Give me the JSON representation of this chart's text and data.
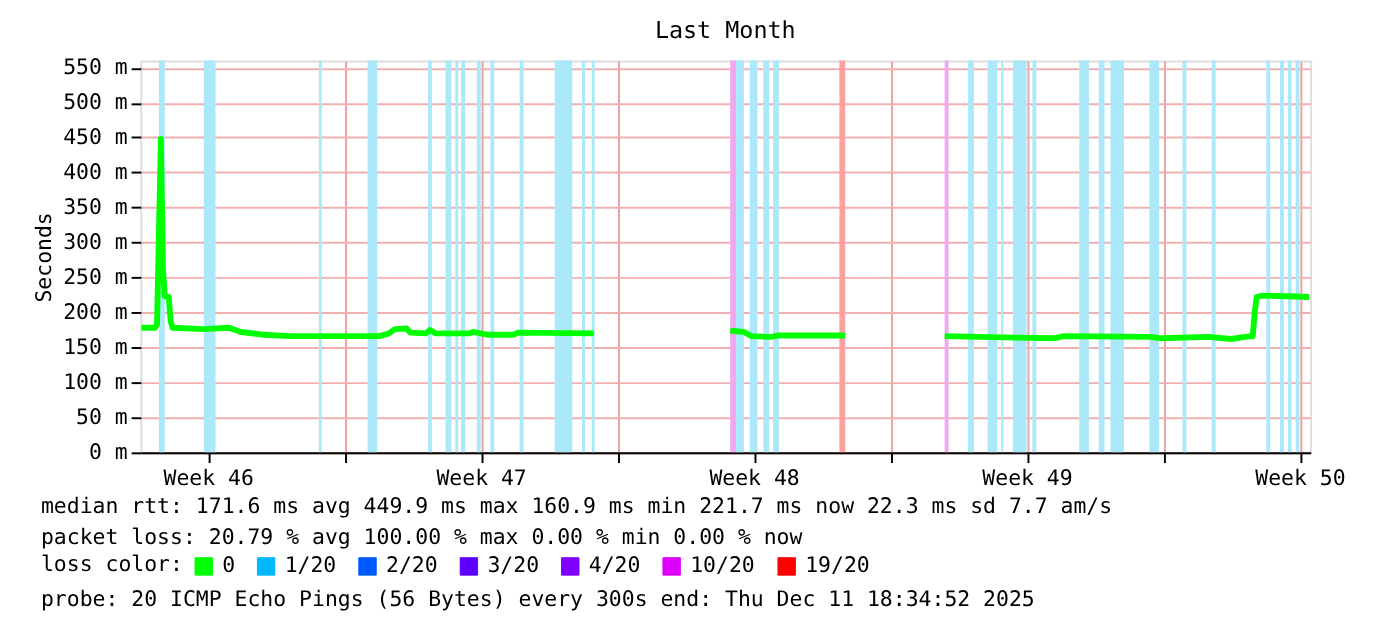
{
  "chart_data": {
    "type": "line",
    "title": "Last Month",
    "ylabel": "Seconds",
    "xlim": [
      "2025-11-11T18:34",
      "2025-12-11T18:34"
    ],
    "xticks": [
      {
        "value": "2025-11-13T12:00",
        "label": "Week 46"
      },
      {
        "value": "2025-11-20T12:00",
        "label": "Week 47"
      },
      {
        "value": "2025-11-27T12:00",
        "label": "Week 48"
      },
      {
        "value": "2025-12-04T12:00",
        "label": "Week 49"
      },
      {
        "value": "2025-12-11T12:00",
        "label": "Week 50"
      },
      {
        "value": "2025-11-17T00:00",
        "label": null
      },
      {
        "value": "2025-11-24T00:00",
        "label": null
      },
      {
        "value": "2025-12-01T00:00",
        "label": null
      },
      {
        "value": "2025-12-08T00:00",
        "label": null
      }
    ],
    "ylim": [
      0,
      560
    ],
    "yticks": [
      {
        "value": 0,
        "label": "0 m"
      },
      {
        "value": 50,
        "label": "50 m"
      },
      {
        "value": 100,
        "label": "100 m"
      },
      {
        "value": 150,
        "label": "150 m"
      },
      {
        "value": 200,
        "label": "200 m"
      },
      {
        "value": 250,
        "label": "250 m"
      },
      {
        "value": 300,
        "label": "300 m"
      },
      {
        "value": 350,
        "label": "350 m"
      },
      {
        "value": 400,
        "label": "400 m"
      },
      {
        "value": 450,
        "label": "450 m"
      },
      {
        "value": 500,
        "label": "500 m"
      },
      {
        "value": 550,
        "label": "550 m"
      }
    ],
    "grid": true,
    "legend": "bottom",
    "legend_title": "loss color:",
    "x": [
      "2025-11-11T19:12",
      "2025-11-12T03:36",
      "2025-11-12T04:48",
      "2025-11-12T07:12",
      "2025-11-12T08:24",
      "2025-11-12T09:36",
      "2025-11-12T12:00",
      "2025-11-12T13:12",
      "2025-11-12T14:24",
      "2025-11-13T09:36",
      "2025-11-14T01:12",
      "2025-11-14T08:24",
      "2025-11-14T22:48",
      "2025-11-15T14:24",
      "2025-11-17T21:36",
      "2025-11-18T03:36",
      "2025-11-18T07:12",
      "2025-11-18T14:24",
      "2025-11-18T16:48",
      "2025-11-19T02:24",
      "2025-11-19T04:48",
      "2025-11-19T08:24",
      "2025-11-20T04:48",
      "2025-11-20T07:12",
      "2025-11-20T16:48",
      "2025-11-21T08:24",
      "2025-11-21T10:48",
      "2025-11-23T09:36",
      "2025-11-24T22:48",
      "2025-11-26T21:36",
      "2025-11-27T06:00",
      "2025-11-27T10:48",
      "2025-11-27T22:48",
      "2025-11-28T03:36",
      "2025-11-29T20:24",
      "2025-11-30T22:48",
      "2025-12-02T09:36",
      "2025-12-04T04:48",
      "2025-12-05T04:48",
      "2025-12-05T10:48",
      "2025-12-07T16:48",
      "2025-12-07T22:48",
      "2025-12-09T03:36",
      "2025-12-09T18:00",
      "2025-12-10T02:24",
      "2025-12-10T07:12",
      "2025-12-10T08:24",
      "2025-12-10T09:36",
      "2025-12-10T13:12",
      "2025-12-11T04:48",
      "2025-12-11T18:00"
    ],
    "series": [
      {
        "name": "0",
        "color": "#00ff00",
        "values": [
          178,
          178,
          183,
          448,
          263,
          223,
          222,
          187,
          178,
          176,
          178,
          172,
          168,
          166,
          166,
          170,
          176,
          177,
          171,
          170,
          175,
          170,
          170,
          172,
          168,
          168,
          171,
          170,
          null,
          174,
          172,
          166,
          165,
          167,
          167,
          null,
          166,
          164,
          163,
          166,
          165,
          163,
          165,
          162,
          165,
          166,
          199,
          222,
          224,
          223,
          222
        ]
      },
      {
        "name": "1/20",
        "color": "#00b8ff",
        "values": [
          null,
          null,
          null,
          null,
          null,
          null,
          null,
          null,
          null,
          null,
          null,
          null,
          null,
          null,
          null,
          null,
          null,
          null,
          null,
          null,
          null,
          null,
          null,
          null,
          null,
          null,
          null,
          null,
          null,
          null,
          null,
          null,
          null,
          null,
          null,
          null,
          null,
          null,
          null,
          null,
          null,
          null,
          null,
          null,
          null,
          null,
          null,
          null,
          null,
          null,
          null
        ]
      },
      {
        "name": "2/20",
        "color": "#0059ff",
        "values": [
          null,
          null,
          null,
          null,
          null,
          null,
          null,
          null,
          null,
          null,
          null,
          null,
          null,
          null,
          null,
          null,
          null,
          null,
          null,
          null,
          null,
          null,
          null,
          null,
          null,
          null,
          null,
          null,
          null,
          null,
          null,
          null,
          null,
          null,
          null,
          null,
          null,
          null,
          null,
          null,
          null,
          null,
          null,
          null,
          null,
          null,
          null,
          null,
          null,
          null,
          null
        ]
      },
      {
        "name": "3/20",
        "color": "#5e00ff",
        "values": [
          null,
          null,
          null,
          null,
          null,
          null,
          null,
          null,
          null,
          null,
          null,
          null,
          null,
          null,
          null,
          null,
          null,
          null,
          null,
          null,
          null,
          null,
          null,
          null,
          null,
          null,
          null,
          null,
          null,
          null,
          null,
          null,
          null,
          null,
          null,
          null,
          null,
          null,
          null,
          null,
          null,
          null,
          null,
          null,
          null,
          null,
          null,
          null,
          null,
          null,
          null
        ]
      },
      {
        "name": "4/20",
        "color": "#7e00ff",
        "values": [
          null,
          null,
          null,
          null,
          null,
          null,
          null,
          null,
          null,
          null,
          null,
          null,
          null,
          null,
          null,
          null,
          null,
          null,
          null,
          null,
          null,
          null,
          null,
          null,
          null,
          null,
          null,
          null,
          null,
          null,
          null,
          null,
          null,
          null,
          null,
          null,
          null,
          null,
          null,
          null,
          null,
          null,
          null,
          null,
          null,
          null,
          null,
          null,
          null,
          null,
          null
        ]
      },
      {
        "name": "10/20",
        "color": "#dd00ff",
        "values": [
          null,
          null,
          null,
          null,
          null,
          null,
          null,
          null,
          null,
          null,
          null,
          null,
          null,
          null,
          null,
          null,
          null,
          null,
          null,
          null,
          null,
          null,
          null,
          null,
          null,
          null,
          null,
          null,
          null,
          null,
          null,
          null,
          null,
          null,
          null,
          null,
          null,
          null,
          null,
          null,
          null,
          null,
          null,
          null,
          null,
          null,
          null,
          null,
          null,
          null,
          null
        ]
      },
      {
        "name": "19/20",
        "color": "#ff0000",
        "values": [
          null,
          null,
          null,
          null,
          null,
          null,
          null,
          null,
          null,
          null,
          null,
          null,
          null,
          null,
          null,
          null,
          null,
          null,
          null,
          null,
          null,
          null,
          null,
          null,
          null,
          null,
          null,
          null,
          null,
          null,
          null,
          null,
          null,
          null,
          null,
          null,
          null,
          null,
          null,
          null,
          null,
          null,
          null,
          null,
          null,
          null,
          null,
          null,
          null,
          null,
          null
        ]
      }
    ],
    "bands": [
      {
        "axis": "x",
        "from": "2025-11-12T06:00",
        "to": "2025-11-12T09:36",
        "color": "#aae8fa"
      },
      {
        "axis": "x",
        "from": "2025-11-13T09:36",
        "to": "2025-11-13T16:48",
        "color": "#aae8fa"
      },
      {
        "axis": "x",
        "from": "2025-11-16T08:24",
        "to": "2025-11-16T10:12",
        "color": "#aae8fa"
      },
      {
        "axis": "x",
        "from": "2025-11-17T14:24",
        "to": "2025-11-17T20:24",
        "color": "#aae8fa"
      },
      {
        "axis": "x",
        "from": "2025-11-19T03:36",
        "to": "2025-11-19T06:00",
        "color": "#aae8fa"
      },
      {
        "axis": "x",
        "from": "2025-11-19T14:24",
        "to": "2025-11-19T18:00",
        "color": "#aae8fa"
      },
      {
        "axis": "x",
        "from": "2025-11-19T20:24",
        "to": "2025-11-19T22:12",
        "color": "#aae8fa"
      },
      {
        "axis": "x",
        "from": "2025-11-20T00:00",
        "to": "2025-11-20T02:24",
        "color": "#aae8fa"
      },
      {
        "axis": "x",
        "from": "2025-11-20T09:36",
        "to": "2025-11-20T12:00",
        "color": "#aae8fa"
      },
      {
        "axis": "x",
        "from": "2025-11-20T18:00",
        "to": "2025-11-20T20:24",
        "color": "#aae8fa"
      },
      {
        "axis": "x",
        "from": "2025-11-21T12:00",
        "to": "2025-11-21T14:24",
        "color": "#aae8fa"
      },
      {
        "axis": "x",
        "from": "2025-11-22T09:36",
        "to": "2025-11-22T20:24",
        "color": "#aae8fa"
      },
      {
        "axis": "x",
        "from": "2025-11-23T02:24",
        "to": "2025-11-23T04:12",
        "color": "#aae8fa"
      },
      {
        "axis": "x",
        "from": "2025-11-23T08:24",
        "to": "2025-11-23T10:12",
        "color": "#aae8fa"
      },
      {
        "axis": "x",
        "from": "2025-11-26T21:36",
        "to": "2025-11-27T01:12",
        "color": "#f0a8f0"
      },
      {
        "axis": "x",
        "from": "2025-11-27T01:12",
        "to": "2025-11-27T06:00",
        "color": "#aae8fa"
      },
      {
        "axis": "x",
        "from": "2025-11-27T09:36",
        "to": "2025-11-27T14:24",
        "color": "#aae8fa"
      },
      {
        "axis": "x",
        "from": "2025-11-27T18:00",
        "to": "2025-11-27T21:36",
        "color": "#aae8fa"
      },
      {
        "axis": "x",
        "from": "2025-11-28T00:00",
        "to": "2025-11-28T03:36",
        "color": "#aae8fa"
      },
      {
        "axis": "x",
        "from": "2025-11-29T16:48",
        "to": "2025-11-29T20:24",
        "color": "#ffa0a0"
      },
      {
        "axis": "x",
        "from": "2025-12-02T09:36",
        "to": "2025-12-02T12:00",
        "color": "#f0a8f0"
      },
      {
        "axis": "x",
        "from": "2025-12-03T00:00",
        "to": "2025-12-03T03:36",
        "color": "#aae8fa"
      },
      {
        "axis": "x",
        "from": "2025-12-03T12:00",
        "to": "2025-12-03T18:00",
        "color": "#aae8fa"
      },
      {
        "axis": "x",
        "from": "2025-12-03T20:24",
        "to": "2025-12-03T21:36",
        "color": "#aae8fa"
      },
      {
        "axis": "x",
        "from": "2025-12-04T03:36",
        "to": "2025-12-04T12:00",
        "color": "#aae8fa"
      },
      {
        "axis": "x",
        "from": "2025-12-04T15:36",
        "to": "2025-12-04T18:00",
        "color": "#aae8fa"
      },
      {
        "axis": "x",
        "from": "2025-12-05T20:24",
        "to": "2025-12-06T02:24",
        "color": "#aae8fa"
      },
      {
        "axis": "x",
        "from": "2025-12-06T08:24",
        "to": "2025-12-06T12:00",
        "color": "#aae8fa"
      },
      {
        "axis": "x",
        "from": "2025-12-06T15:36",
        "to": "2025-12-07T00:00",
        "color": "#aae8fa"
      },
      {
        "axis": "x",
        "from": "2025-12-07T15:36",
        "to": "2025-12-07T21:36",
        "color": "#aae8fa"
      },
      {
        "axis": "x",
        "from": "2025-12-08T12:00",
        "to": "2025-12-08T14:24",
        "color": "#aae8fa"
      },
      {
        "axis": "x",
        "from": "2025-12-09T06:00",
        "to": "2025-12-09T08:24",
        "color": "#aae8fa"
      },
      {
        "axis": "x",
        "from": "2025-12-10T15:36",
        "to": "2025-12-10T18:00",
        "color": "#aae8fa"
      },
      {
        "axis": "x",
        "from": "2025-12-11T00:00",
        "to": "2025-12-11T02:24",
        "color": "#aae8fa"
      },
      {
        "axis": "x",
        "from": "2025-12-11T04:48",
        "to": "2025-12-11T07:12",
        "color": "#aae8fa"
      },
      {
        "axis": "x",
        "from": "2025-12-11T09:36",
        "to": "2025-12-11T12:00",
        "color": "#aae8fa"
      }
    ],
    "annotations": [
      "median rtt:  171.6 ms avg  449.9 ms max  160.9 ms min  221.7 ms now  22.3 ms sd  7.7   am/s",
      "packet loss: 20.79 % avg  100.00 % max  0.00 % min  0.00 % now",
      "probe:       20 ICMP Echo Pings (56 Bytes) every 300s          end: Thu Dec 11 18:34:52 2025"
    ]
  }
}
